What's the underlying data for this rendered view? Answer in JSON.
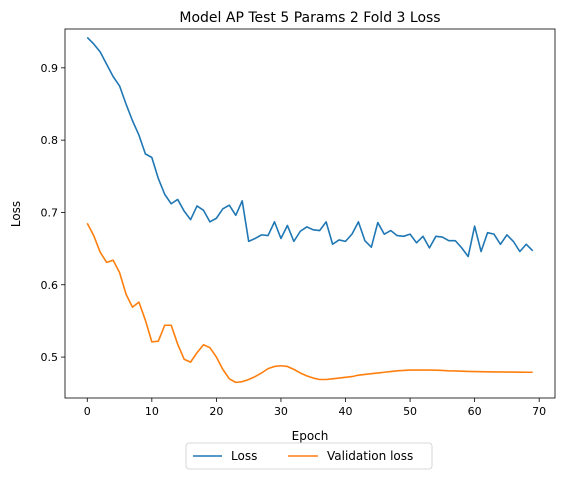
{
  "chart_data": {
    "type": "line",
    "title": "Model AP Test 5 Params 2 Fold 3 Loss",
    "xlabel": "Epoch",
    "ylabel": "Loss",
    "xlim": [
      -3.45,
      72.45
    ],
    "ylim": [
      0.4434,
      0.9537
    ],
    "x_ticks": [
      0,
      10,
      20,
      30,
      40,
      50,
      60,
      70
    ],
    "y_ticks": [
      0.5,
      0.6,
      0.7,
      0.8,
      0.9
    ],
    "grid": false,
    "legend_position": "bottom-center-outside",
    "colors": {
      "Loss": "#1f77b4",
      "Validation loss": "#ff7f0e"
    },
    "series": [
      {
        "name": "Loss",
        "x": [
          0,
          1,
          2,
          3,
          4,
          5,
          6,
          7,
          8,
          9,
          10,
          11,
          12,
          13,
          14,
          15,
          16,
          17,
          18,
          19,
          20,
          21,
          22,
          23,
          24,
          25,
          26,
          27,
          28,
          29,
          30,
          31,
          32,
          33,
          34,
          35,
          36,
          37,
          38,
          39,
          40,
          41,
          42,
          43,
          44,
          45,
          46,
          47,
          48,
          49,
          50,
          51,
          52,
          53,
          54,
          55,
          56,
          57,
          58,
          59,
          60,
          61,
          62,
          63,
          64,
          65,
          66,
          67,
          68,
          69
        ],
        "values": [
          0.942,
          0.933,
          0.922,
          0.905,
          0.888,
          0.875,
          0.85,
          0.827,
          0.807,
          0.781,
          0.776,
          0.747,
          0.725,
          0.712,
          0.718,
          0.702,
          0.69,
          0.709,
          0.703,
          0.687,
          0.692,
          0.705,
          0.71,
          0.696,
          0.716,
          0.66,
          0.664,
          0.669,
          0.668,
          0.687,
          0.664,
          0.682,
          0.66,
          0.674,
          0.68,
          0.676,
          0.675,
          0.687,
          0.656,
          0.662,
          0.66,
          0.67,
          0.687,
          0.661,
          0.652,
          0.686,
          0.67,
          0.675,
          0.668,
          0.667,
          0.67,
          0.658,
          0.667,
          0.651,
          0.667,
          0.666,
          0.661,
          0.661,
          0.651,
          0.639,
          0.681,
          0.646,
          0.672,
          0.67,
          0.656,
          0.669,
          0.66,
          0.646,
          0.656,
          0.647
        ]
      },
      {
        "name": "Validation loss",
        "x": [
          0,
          1,
          2,
          3,
          4,
          5,
          6,
          7,
          8,
          9,
          10,
          11,
          12,
          13,
          14,
          15,
          16,
          17,
          18,
          19,
          20,
          21,
          22,
          23,
          24,
          25,
          26,
          27,
          28,
          29,
          30,
          31,
          32,
          33,
          34,
          35,
          36,
          37,
          38,
          39,
          40,
          41,
          42,
          43,
          44,
          45,
          46,
          47,
          48,
          49,
          50,
          51,
          52,
          53,
          54,
          55,
          56,
          57,
          58,
          59,
          60,
          61,
          62,
          63,
          64,
          65,
          66,
          67,
          68,
          69
        ],
        "values": [
          0.685,
          0.668,
          0.645,
          0.631,
          0.634,
          0.617,
          0.587,
          0.569,
          0.576,
          0.551,
          0.521,
          0.522,
          0.544,
          0.544,
          0.518,
          0.497,
          0.493,
          0.506,
          0.517,
          0.513,
          0.5,
          0.483,
          0.47,
          0.465,
          0.466,
          0.469,
          0.473,
          0.478,
          0.484,
          0.487,
          0.488,
          0.487,
          0.483,
          0.478,
          0.474,
          0.471,
          0.469,
          0.469,
          0.47,
          0.471,
          0.472,
          0.473,
          0.475,
          0.476,
          0.477,
          0.478,
          0.479,
          0.48,
          0.481,
          0.4815,
          0.482,
          0.482,
          0.482,
          0.482,
          0.4818,
          0.4815,
          0.481,
          0.4808,
          0.4805,
          0.4802,
          0.48,
          0.4798,
          0.4796,
          0.4795,
          0.4794,
          0.4793,
          0.4792,
          0.4791,
          0.479,
          0.479
        ]
      }
    ]
  }
}
